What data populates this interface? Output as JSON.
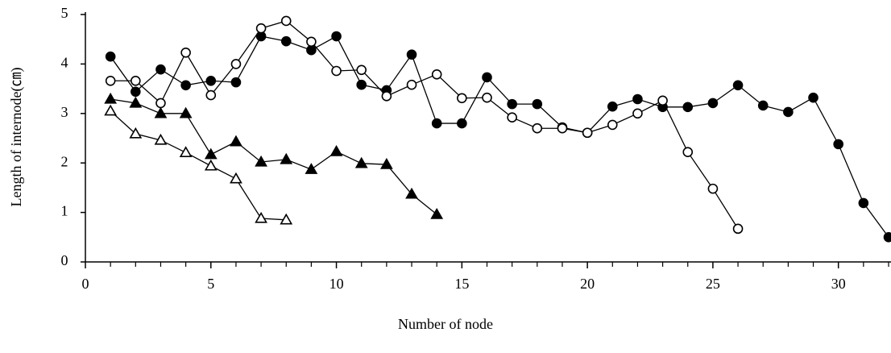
{
  "chart_data": {
    "type": "line",
    "x_label": "Number of node",
    "y_label": "Length of internode(㎝)",
    "xlim": [
      0,
      32
    ],
    "ylim": [
      0,
      5
    ],
    "xticks": [
      0,
      5,
      10,
      15,
      20,
      25,
      30
    ],
    "xminorticks": [
      1,
      2,
      3,
      4,
      6,
      7,
      8,
      9,
      11,
      12,
      13,
      14,
      16,
      17,
      18,
      19,
      21,
      22,
      23,
      24,
      26,
      27,
      28,
      29,
      31,
      32
    ],
    "yticks": [
      0,
      1,
      2,
      3,
      4,
      5
    ],
    "grid": false,
    "series": [
      {
        "color": "#000000",
        "marker": "circle",
        "filled": true,
        "x": [
          1,
          2,
          3,
          4,
          5,
          6,
          7,
          8,
          9,
          10,
          11,
          12,
          13,
          14,
          15,
          16,
          17,
          18,
          19,
          20,
          21,
          22,
          23,
          24,
          25,
          26,
          27,
          28,
          29,
          30,
          31,
          32
        ],
        "values": [
          4.15,
          3.44,
          3.89,
          3.57,
          3.66,
          3.63,
          4.56,
          4.46,
          4.28,
          4.56,
          3.58,
          3.47,
          4.19,
          2.8,
          2.8,
          3.73,
          3.19,
          3.19,
          2.72,
          2.61,
          3.14,
          3.29,
          3.13,
          3.13,
          3.21,
          3.57,
          3.16,
          3.03,
          3.32,
          2.38,
          1.19,
          0.5
        ]
      },
      {
        "color": "#000000",
        "marker": "circle",
        "filled": false,
        "x": [
          1,
          2,
          3,
          4,
          5,
          6,
          7,
          8,
          9,
          10,
          11,
          12,
          13,
          14,
          15,
          16,
          17,
          18,
          19,
          20,
          21,
          22,
          23,
          24,
          25,
          26
        ],
        "values": [
          3.66,
          3.66,
          3.21,
          4.23,
          3.37,
          4.0,
          4.72,
          4.87,
          4.45,
          3.86,
          3.88,
          3.35,
          3.58,
          3.79,
          3.31,
          3.32,
          2.92,
          2.7,
          2.7,
          2.61,
          2.77,
          3.0,
          3.26,
          2.22,
          1.48,
          0.67
        ]
      },
      {
        "color": "#000000",
        "marker": "triangle",
        "filled": true,
        "x": [
          1,
          2,
          3,
          4,
          5,
          6,
          7,
          8,
          9,
          10,
          11,
          12,
          13,
          14
        ],
        "values": [
          3.29,
          3.21,
          3.0,
          3.0,
          2.17,
          2.43,
          2.02,
          2.07,
          1.87,
          2.23,
          1.99,
          1.97,
          1.37,
          0.96
        ]
      },
      {
        "color": "#000000",
        "marker": "triangle",
        "filled": false,
        "x": [
          1,
          2,
          3,
          4,
          5,
          6,
          7,
          8
        ],
        "values": [
          3.05,
          2.59,
          2.46,
          2.21,
          1.94,
          1.68,
          0.88,
          0.85
        ]
      }
    ]
  }
}
